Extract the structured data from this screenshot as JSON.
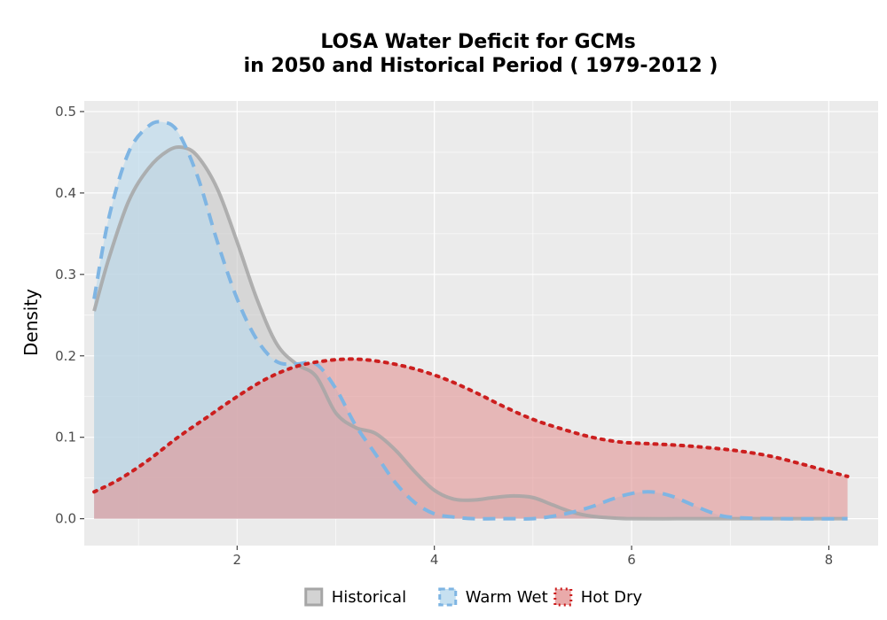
{
  "chart_data": {
    "type": "area",
    "title_line1": "LOSA  Water Deficit for GCMs",
    "title_line2": "in 2050 and Historical Period ( 1979-2012 )",
    "xlabel": "",
    "ylabel": "Density",
    "xlim": [
      0.45,
      8.5
    ],
    "ylim": [
      -0.033,
      0.513
    ],
    "x_ticks": [
      2,
      4,
      6,
      8
    ],
    "y_ticks": [
      0.0,
      0.1,
      0.2,
      0.3,
      0.4,
      0.5
    ],
    "y_tick_labels": [
      "0.0",
      "0.1",
      "0.2",
      "0.3",
      "0.4",
      "0.5"
    ],
    "grid": true,
    "legend_position": "bottom",
    "series": [
      {
        "name": "Historical",
        "line_color": "#a6a6a6",
        "fill_color": "#c8c8c8",
        "line_style": "solid",
        "x": [
          0.55,
          0.7,
          0.9,
          1.1,
          1.3,
          1.45,
          1.6,
          1.8,
          2.0,
          2.2,
          2.4,
          2.6,
          2.8,
          3.0,
          3.2,
          3.4,
          3.6,
          3.8,
          4.0,
          4.2,
          4.4,
          4.6,
          4.8,
          5.0,
          5.2,
          5.4,
          5.6,
          5.8,
          6.0,
          6.5,
          7.0,
          7.5,
          8.19
        ],
        "y": [
          0.255,
          0.32,
          0.39,
          0.43,
          0.452,
          0.456,
          0.445,
          0.405,
          0.34,
          0.27,
          0.215,
          0.19,
          0.175,
          0.13,
          0.112,
          0.105,
          0.085,
          0.058,
          0.035,
          0.024,
          0.023,
          0.026,
          0.028,
          0.026,
          0.017,
          0.008,
          0.003,
          0.001,
          0.0,
          0.0,
          0.0,
          0.0,
          0.0
        ]
      },
      {
        "name": "Warm Wet",
        "line_color": "#7fb5e3",
        "fill_color": "#b8d8ec",
        "line_style": "dashed",
        "x": [
          0.55,
          0.7,
          0.9,
          1.1,
          1.25,
          1.4,
          1.6,
          1.8,
          2.0,
          2.2,
          2.4,
          2.6,
          2.8,
          3.0,
          3.2,
          3.4,
          3.6,
          3.8,
          4.0,
          4.2,
          4.4,
          4.6,
          4.8,
          5.0,
          5.2,
          5.4,
          5.6,
          5.8,
          6.0,
          6.2,
          6.4,
          6.6,
          6.8,
          7.0,
          7.5,
          8.19
        ],
        "y": [
          0.27,
          0.37,
          0.45,
          0.482,
          0.487,
          0.475,
          0.42,
          0.34,
          0.27,
          0.22,
          0.193,
          0.19,
          0.19,
          0.16,
          0.115,
          0.08,
          0.045,
          0.02,
          0.006,
          0.002,
          0.0,
          0.0,
          0.0,
          0.0,
          0.003,
          0.008,
          0.015,
          0.024,
          0.031,
          0.033,
          0.028,
          0.018,
          0.008,
          0.002,
          0.0,
          0.0
        ]
      },
      {
        "name": "Hot Dry",
        "line_color": "#cc1f1f",
        "fill_color": "#e39595",
        "line_style": "dotted",
        "x": [
          0.55,
          0.8,
          1.1,
          1.4,
          1.7,
          2.0,
          2.3,
          2.6,
          2.9,
          3.2,
          3.5,
          3.8,
          4.1,
          4.4,
          4.7,
          5.0,
          5.3,
          5.6,
          5.9,
          6.2,
          6.5,
          6.8,
          7.1,
          7.4,
          7.7,
          8.0,
          8.19
        ],
        "y": [
          0.033,
          0.048,
          0.072,
          0.1,
          0.125,
          0.15,
          0.172,
          0.187,
          0.194,
          0.196,
          0.192,
          0.184,
          0.172,
          0.156,
          0.138,
          0.122,
          0.11,
          0.1,
          0.094,
          0.092,
          0.09,
          0.087,
          0.083,
          0.077,
          0.068,
          0.058,
          0.052
        ]
      }
    ]
  }
}
